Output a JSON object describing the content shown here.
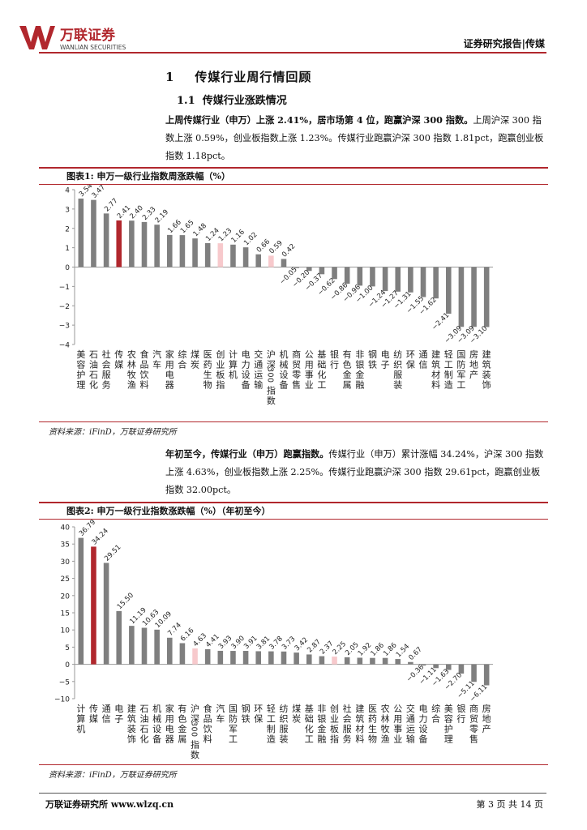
{
  "header": {
    "logo_cn": "万联证券",
    "logo_en": "WANLIAN SECURITIES",
    "report_type": "证券研究报告|传媒"
  },
  "section": {
    "h1_num": "1",
    "h1_title": "传媒行业周行情回顾",
    "h2_num": "1.1",
    "h2_title": "传媒行业涨跌情况"
  },
  "para1": {
    "bold": "上周传媒行业（申万）上涨 2.41%，居市场第 4 位，跑赢沪深 300 指数。",
    "normal": "上周沪深 300 指数上涨 0.59%，创业板指数上涨 1.23%。传媒行业跑赢沪深 300 指数 1.81pct，跑赢创业板指数 1.18pct。"
  },
  "para2": {
    "bold": "年初至今，传媒行业（申万）跑赢指数。",
    "normal": "传媒行业（申万）累计涨幅 34.24%，沪深 300 指数上涨 4.63%，创业板指数上涨 2.25%。传媒行业跑赢沪深 300 指数 29.61pct，跑赢创业板指数 32.00pct。"
  },
  "colors": {
    "accent": "#b1272d",
    "bar": "#7f7f7f",
    "media": "#b1272d",
    "index": "#f7c9cc"
  },
  "chart_data": [
    {
      "type": "bar",
      "title": "图表1:  申万一级行业指数周涨跌幅（%）",
      "ylim": [
        -4,
        4
      ],
      "yticks": [
        -4,
        -3,
        -2,
        -1,
        0,
        1,
        2,
        3,
        4
      ],
      "categories": [
        "美容护理",
        "石油石化",
        "社会服务",
        "传媒",
        "农林牧渔",
        "食品饮料",
        "汽车",
        "家用电器",
        "综合",
        "煤炭",
        "医药生物",
        "创业板指",
        "计算机",
        "电力设备",
        "交通运输",
        "沪深300指数",
        "机械设备",
        "商贸零售",
        "公用事业",
        "基础化工",
        "银行",
        "有色金属",
        "非银金融",
        "钢铁",
        "电子",
        "纺织服装",
        "环保",
        "通信",
        "建筑材料",
        "轻工制造",
        "国防军工",
        "房地产",
        "建筑装饰"
      ],
      "values": [
        3.54,
        3.47,
        2.77,
        2.41,
        2.4,
        2.33,
        2.19,
        1.66,
        1.65,
        1.48,
        1.24,
        1.23,
        1.16,
        1.02,
        0.66,
        0.59,
        0.42,
        -0.05,
        -0.2,
        -0.37,
        -0.62,
        -0.86,
        -0.96,
        -1.0,
        -1.24,
        -1.27,
        -1.31,
        -1.55,
        -1.62,
        -2.41,
        -3.09,
        -3.09,
        -3.1
      ],
      "labels": [
        "3.54",
        "3.47",
        "2.77",
        "2.41",
        "2.40",
        "2.33",
        "2.19",
        "1.66",
        "1.65",
        "1.48",
        "1.24",
        "1.23",
        "1.16",
        "1.02",
        "0.66",
        "0.59",
        "0.42",
        "−0.05",
        "−0.20",
        "−0.37",
        "−0.62",
        "−0.86",
        "−0.96",
        "−1.00",
        "−1.24",
        "−1.27",
        "−1.31",
        "−1.55",
        "−1.62",
        "−2.41",
        "−3.09",
        "−3.09",
        "−3.10"
      ],
      "highlight": {
        "传媒": "media",
        "创业板指": "index",
        "沪深300指数": "index"
      },
      "source": "资料来源：iFinD，万联证券研究所"
    },
    {
      "type": "bar",
      "title": "图表2:  申万一级行业指数涨跌幅（%）（年初至今）",
      "ylim": [
        -10,
        40
      ],
      "yticks": [
        -10,
        -5,
        0,
        5,
        10,
        15,
        20,
        25,
        30,
        35,
        40
      ],
      "categories": [
        "计算机",
        "传媒",
        "通信",
        "电子",
        "建筑装饰",
        "石油石化",
        "机械设备",
        "家用电器",
        "有色金属",
        "沪深300指数",
        "食品饮料",
        "汽车",
        "国防军工",
        "钢铁",
        "环保",
        "轻工制造",
        "纺织服装",
        "煤炭",
        "基础化工",
        "非银金融",
        "创业板指",
        "社会服务",
        "建筑材料",
        "医药生物",
        "农林牧渔",
        "公用事业",
        "交通运输",
        "电力设备",
        "综合",
        "美容护理",
        "银行",
        "商贸零售",
        "房地产"
      ],
      "values": [
        36.79,
        34.24,
        29.51,
        15.5,
        11.19,
        10.63,
        10.09,
        7.74,
        6.16,
        4.63,
        4.41,
        3.93,
        3.9,
        3.91,
        3.81,
        3.78,
        3.73,
        3.42,
        2.87,
        2.37,
        2.25,
        2.05,
        1.92,
        1.86,
        1.86,
        1.54,
        0.67,
        -0.36,
        -1.11,
        -1.63,
        -2.7,
        -5.11,
        -6.11
      ],
      "labels": [
        "36.79",
        "34.24",
        "29.51",
        "15.50",
        "11.19",
        "10.63",
        "10.09",
        "7.74",
        "6.16",
        "4.63",
        "4.41",
        "3.93",
        "3.90",
        "3.91",
        "3.81",
        "3.78",
        "3.73",
        "3.42",
        "2.87",
        "2.37",
        "2.25",
        "2.05",
        "1.92",
        "1.86",
        "1.86",
        "1.54",
        "0.67",
        "−0.36",
        "−1.11",
        "−1.63",
        "−2.70",
        "−5.11",
        "−6.11"
      ],
      "highlight": {
        "传媒": "media",
        "创业板指": "index",
        "沪深300指数": "index"
      },
      "source": "资料来源：iFinD，万联证券研究所"
    }
  ],
  "footer": {
    "left": "万联证券研究所 www.wlzq.cn",
    "right": "第 3 页 共 14 页"
  }
}
